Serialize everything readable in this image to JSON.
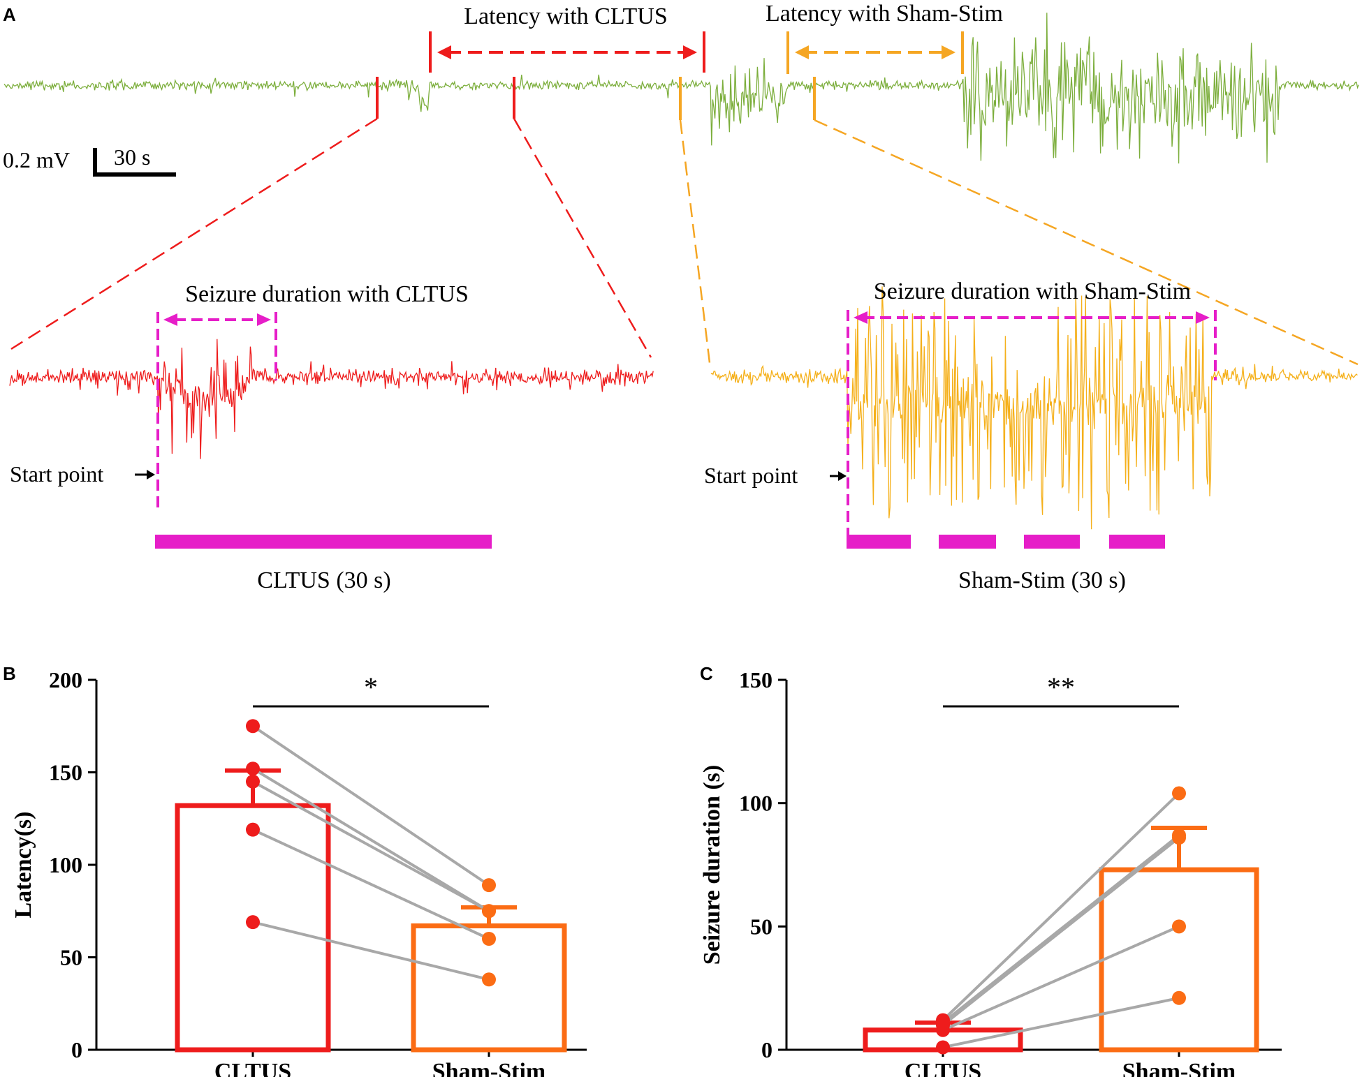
{
  "colors": {
    "trace_main": "#7cae3c",
    "trace_cltus": "#ee1c1c",
    "trace_sham": "#f5b01a",
    "cltus": "#ee1c1c",
    "sham": "#f5a623",
    "sham_bar": "#fb6c14",
    "duration": "#e61ec8",
    "grey": "#a8a8a8"
  },
  "panel_a": {
    "label": "A",
    "latency_cltus": "Latency with CLTUS",
    "latency_sham": "Latency with Sham-Stim",
    "scale_mv": "0.2 mV",
    "scale_time": "30 s",
    "cltus_inset": {
      "duration_title": "Seizure duration with CLTUS",
      "start_label": "Start point",
      "stim_label": "CLTUS (30 s)"
    },
    "sham_inset": {
      "duration_title": "Seizure duration with Sham-Stim",
      "start_label": "Start point",
      "stim_label": "Sham-Stim (30 s)"
    }
  },
  "chart_data": [
    {
      "panel": "B",
      "type": "bar",
      "title": "",
      "xlabel": "",
      "ylabel": "Latency(s)",
      "categories": [
        "CLTUS",
        "Sham-Stim"
      ],
      "values": [
        132,
        67
      ],
      "errors": [
        19,
        10
      ],
      "ylim": [
        0,
        200
      ],
      "yticks": [
        0,
        50,
        100,
        150,
        200
      ],
      "paired_points": [
        [
          175,
          89
        ],
        [
          152,
          75
        ],
        [
          145,
          75
        ],
        [
          119,
          60
        ],
        [
          69,
          38
        ]
      ],
      "significance": "*"
    },
    {
      "panel": "C",
      "type": "bar",
      "title": "",
      "xlabel": "",
      "ylabel": "Seizure duration (s)",
      "categories": [
        "CLTUS",
        "Sham-Stim"
      ],
      "values": [
        8,
        73
      ],
      "errors": [
        3,
        17
      ],
      "ylim": [
        0,
        150
      ],
      "yticks": [
        0,
        50,
        100,
        150
      ],
      "paired_points": [
        [
          12,
          104
        ],
        [
          11,
          87
        ],
        [
          10,
          86
        ],
        [
          8,
          50
        ],
        [
          1,
          21
        ]
      ],
      "significance": "**"
    }
  ]
}
